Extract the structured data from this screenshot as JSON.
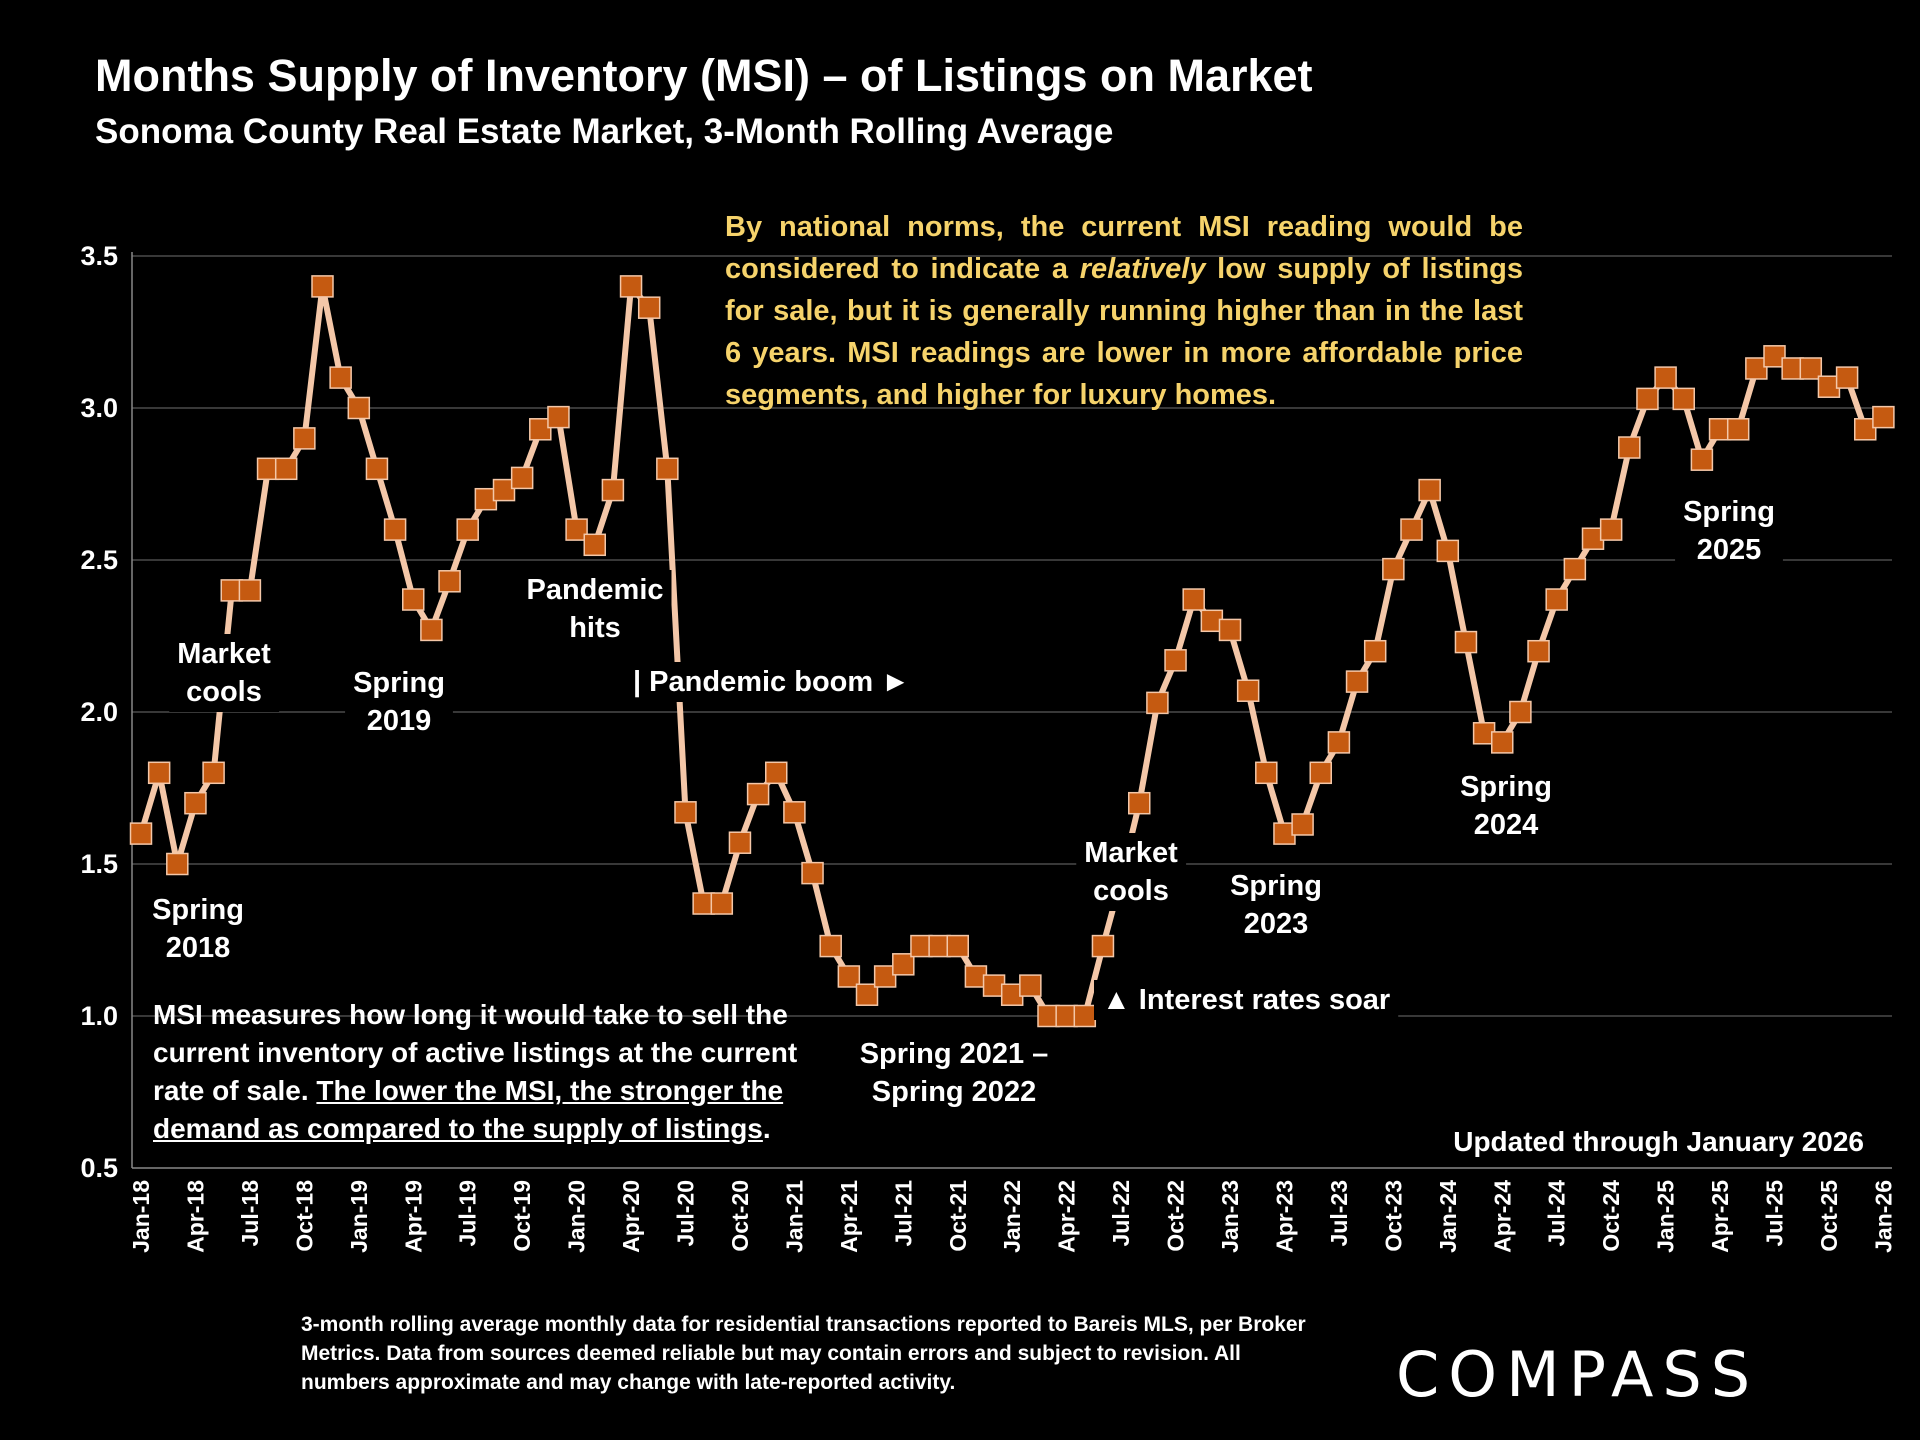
{
  "header": {
    "title": "Months Supply of Inventory (MSI) – of Listings on Market",
    "subtitle": "Sonoma County Real Estate Market, 3-Month Rolling Average"
  },
  "annotation": {
    "part1": "By national norms, the current MSI reading would be considered to indicate a ",
    "italic": "relatively",
    "part2": " low supply of listings for sale, but it is generally running higher than in the last 6 years. MSI readings are lower in more affordable price segments, and higher for luxury homes."
  },
  "note": {
    "part1": "MSI measures how long it would take to sell the current inventory of active listings at the current rate of sale. ",
    "underlined": "The lower the MSI, the stronger the demand as compared to the supply of listings",
    "part2": "."
  },
  "updated": "Updated through January 2026",
  "footnote": "3-month rolling average monthly data for residential transactions reported to Bareis MLS, per Broker Metrics. Data from sources deemed reliable but may contain errors and subject to revision. All numbers approximate and may change with late-reported activity.",
  "logo": "COMPASS",
  "colors": {
    "line": "#f4c7a8",
    "marker": "#c55a11",
    "grid": "#4a4a4a",
    "annotation": "#f6d36b"
  },
  "chart_data": {
    "type": "line",
    "title": "Months Supply of Inventory (MSI) – of Listings on Market",
    "ylim": [
      0.5,
      3.5
    ],
    "yticks": [
      "0.5",
      "1.0",
      "1.5",
      "2.0",
      "2.5",
      "3.0",
      "3.5"
    ],
    "grid": true,
    "start_month": "Jan-18",
    "xtick_labels": [
      "Jan-18",
      "Apr-18",
      "Jul-18",
      "Oct-18",
      "Jan-19",
      "Apr-19",
      "Jul-19",
      "Oct-19",
      "Jan-20",
      "Apr-20",
      "Jul-20",
      "Oct-20",
      "Jan-21",
      "Apr-21",
      "Jul-21",
      "Oct-21",
      "Jan-22",
      "Apr-22",
      "Jul-22",
      "Oct-22",
      "Jan-23",
      "Apr-23",
      "Jul-23",
      "Oct-23",
      "Jan-24",
      "Apr-24",
      "Jul-24",
      "Oct-24",
      "Jan-25",
      "Apr-25",
      "Jul-25",
      "Oct-25",
      "Jan-26"
    ],
    "values": [
      1.6,
      1.8,
      1.5,
      1.7,
      1.8,
      2.4,
      2.4,
      2.8,
      2.8,
      2.9,
      3.4,
      3.1,
      3.0,
      2.8,
      2.6,
      2.37,
      2.27,
      2.43,
      2.6,
      2.7,
      2.73,
      2.77,
      2.93,
      2.97,
      2.6,
      2.55,
      2.73,
      3.4,
      3.33,
      2.8,
      1.67,
      1.37,
      1.37,
      1.57,
      1.73,
      1.8,
      1.67,
      1.47,
      1.23,
      1.13,
      1.07,
      1.13,
      1.17,
      1.23,
      1.23,
      1.23,
      1.13,
      1.1,
      1.07,
      1.1,
      1.0,
      1.0,
      1.0,
      1.23,
      1.45,
      1.7,
      2.03,
      2.17,
      2.37,
      2.3,
      2.27,
      2.07,
      1.8,
      1.6,
      1.63,
      1.8,
      1.9,
      2.1,
      2.2,
      2.47,
      2.6,
      2.73,
      2.53,
      2.23,
      1.93,
      1.9,
      2.0,
      2.2,
      2.37,
      2.47,
      2.57,
      2.6,
      2.87,
      3.03,
      3.1,
      3.03,
      2.83,
      2.93,
      2.93,
      3.13,
      3.17,
      3.13,
      3.13,
      3.07,
      3.1,
      2.93,
      2.97
    ],
    "annotations": [
      {
        "lines": [
          "Market",
          "cools"
        ],
        "month": "Jun-18"
      },
      {
        "lines": [
          "Spring",
          "2018"
        ],
        "month": "Mar-18"
      },
      {
        "lines": [
          "Spring",
          "2019"
        ],
        "month": "May-19"
      },
      {
        "lines": [
          "Pandemic",
          "hits"
        ],
        "month": "Mar-20"
      },
      {
        "lines": [
          "| Pandemic boom ►"
        ],
        "month": "Jul-20"
      },
      {
        "lines": [
          "Spring 2021 –",
          "Spring 2022"
        ],
        "month": "Oct-21"
      },
      {
        "lines": [
          "▲ Interest rates soar"
        ],
        "month": "Jun-22"
      },
      {
        "lines": [
          "Market",
          "cools"
        ],
        "month": "Jul-22"
      },
      {
        "lines": [
          "Spring",
          "2023"
        ],
        "month": "Apr-23"
      },
      {
        "lines": [
          "Spring",
          "2024"
        ],
        "month": "Apr-24"
      },
      {
        "lines": [
          "Spring",
          "2025"
        ],
        "month": "Apr-25"
      }
    ]
  }
}
